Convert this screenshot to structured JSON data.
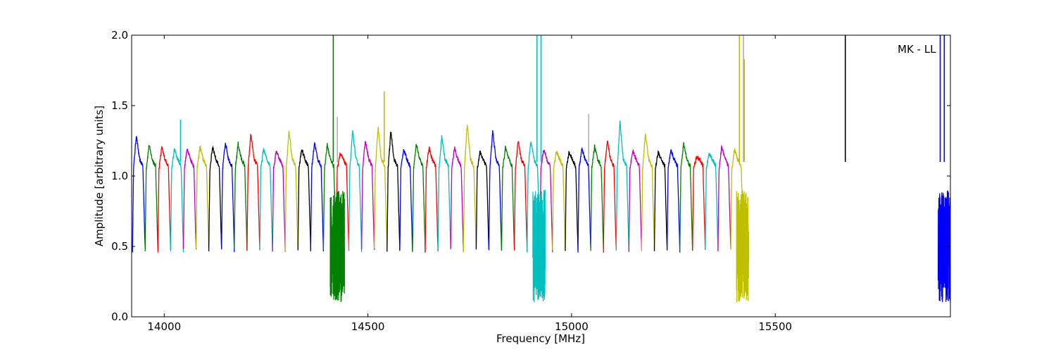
{
  "chart_data": {
    "type": "line",
    "xlabel": "Frequency [MHz]",
    "ylabel": "Amplitude [arbitrary units]",
    "annotation": "MK - LL",
    "xlim": [
      13920,
      15930
    ],
    "ylim": [
      0.0,
      2.0
    ],
    "xticks": [
      14000,
      14500,
      15000,
      15500
    ],
    "xtick_labels": [
      "14000",
      "14500",
      "15000",
      "15500"
    ],
    "yticks": [
      0.0,
      0.5,
      1.0,
      1.5,
      2.0
    ],
    "ytick_labels": [
      "0.0",
      "0.5",
      "1.0",
      "1.5",
      "2.0"
    ],
    "grid": false,
    "legend": "none",
    "channel_width_mhz": 31.25,
    "channel_start_mhz": 13922,
    "channel_peak_amplitudes": [
      1.29,
      1.22,
      1.2,
      1.19,
      1.2,
      1.21,
      1.21,
      1.24,
      1.23,
      1.3,
      1.19,
      1.18,
      1.32,
      1.19,
      1.24,
      1.22,
      1.16,
      1.32,
      1.25,
      1.34,
      1.32,
      1.19,
      1.23,
      1.2,
      1.28,
      1.2,
      1.37,
      1.17,
      1.32,
      1.2,
      1.25,
      1.25,
      1.19,
      1.18,
      1.17,
      1.19,
      1.21,
      1.25,
      1.39,
      1.18,
      1.3,
      1.17,
      1.18,
      1.23,
      1.13,
      1.16,
      1.21,
      1.19
    ],
    "series": [
      {
        "color": "#0000ff"
      },
      {
        "color": "#008000"
      },
      {
        "color": "#ff0000"
      },
      {
        "color": "#00bfbf"
      },
      {
        "color": "#bf00bf"
      },
      {
        "color": "#bfbf00"
      },
      {
        "color": "#000000"
      }
    ],
    "rfi_spikes": [
      {
        "x": 14040,
        "y": 1.4,
        "color": "#00bfbf"
      },
      {
        "x": 14415,
        "y": 2.0,
        "color": "#008000"
      },
      {
        "x": 14425,
        "y": 1.42,
        "color": "#b0b0b0"
      },
      {
        "x": 14540,
        "y": 1.6,
        "color": "#bfbf00"
      },
      {
        "x": 14915,
        "y": 2.0,
        "color": "#00bfbf"
      },
      {
        "x": 14925,
        "y": 2.0,
        "color": "#00bfbf"
      },
      {
        "x": 15042,
        "y": 1.44,
        "color": "#b0b0b0"
      },
      {
        "x": 15412,
        "y": 2.0,
        "color": "#bfbf00"
      },
      {
        "x": 15422,
        "y": 2.0,
        "color": "#b0b0b0"
      },
      {
        "x": 15424,
        "y": 1.83,
        "color": "#bfbf00"
      },
      {
        "x": 15672,
        "y": 2.0,
        "color": "#000000"
      },
      {
        "x": 15905,
        "y": 2.0,
        "color": "#0000ff"
      },
      {
        "x": 15915,
        "y": 2.0,
        "color": "#0000ff"
      }
    ],
    "rfi_bursts": [
      {
        "center": 14425,
        "width": 35,
        "color": "#008000"
      },
      {
        "center": 14920,
        "width": 30,
        "color": "#00bfbf"
      },
      {
        "center": 15420,
        "width": 30,
        "color": "#bfbf00"
      },
      {
        "center": 15915,
        "width": 30,
        "color": "#0000ff"
      }
    ]
  }
}
